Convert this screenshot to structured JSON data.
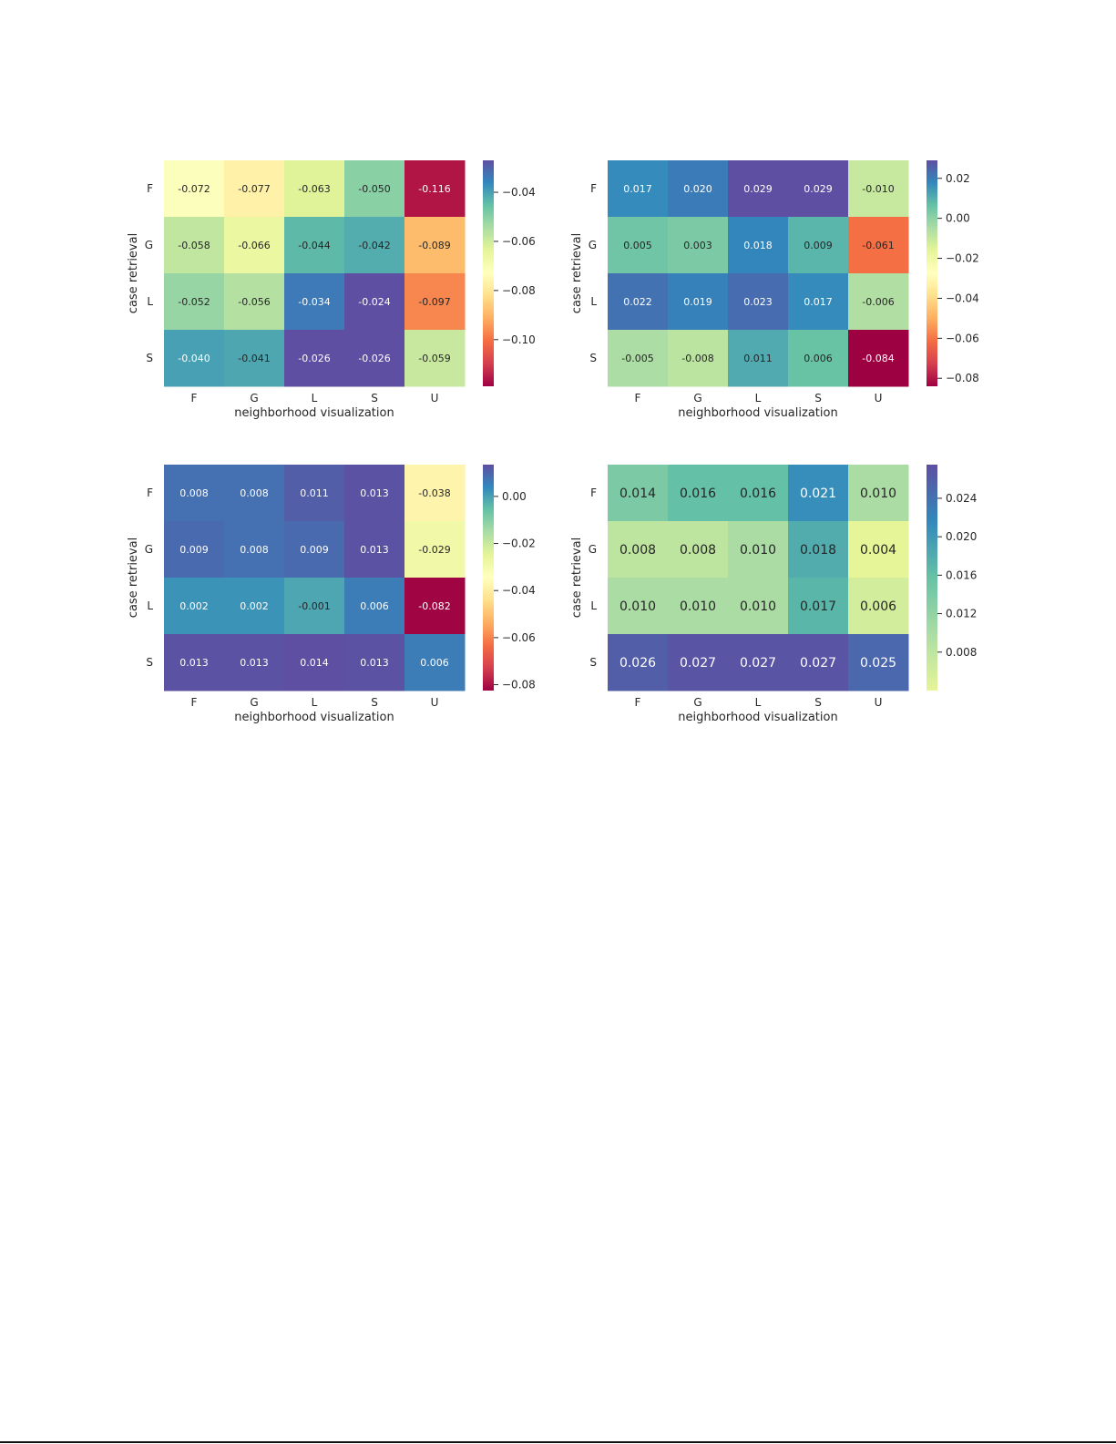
{
  "chart_data": [
    {
      "type": "heatmap",
      "colormap": "Spectral",
      "xlabel": "neighborhood visualization",
      "ylabel": "case retrieval",
      "x_categories": [
        "F",
        "G",
        "L",
        "S",
        "U"
      ],
      "y_categories": [
        "F",
        "G",
        "L",
        "S"
      ],
      "values": [
        [
          -0.072,
          -0.077,
          -0.063,
          -0.05,
          -0.116
        ],
        [
          -0.058,
          -0.066,
          -0.044,
          -0.042,
          -0.089
        ],
        [
          -0.052,
          -0.056,
          -0.034,
          -0.024,
          -0.097
        ],
        [
          -0.04,
          -0.041,
          -0.026,
          -0.026,
          -0.059
        ]
      ],
      "cell_labels": [
        [
          "-0.072",
          "-0.077",
          "-0.063",
          "-0.050",
          "-0.116"
        ],
        [
          "-0.058",
          "-0.066",
          "-0.044",
          "-0.042",
          "-0.089"
        ],
        [
          "-0.052",
          "-0.056",
          "-0.034",
          "-0.024",
          "-0.097"
        ],
        [
          "-0.040",
          "-0.041",
          "-0.026",
          "-0.026",
          "-0.059"
        ]
      ],
      "colorbar": {
        "vmin": -0.119,
        "vmax": -0.027,
        "ticks": [
          -0.04,
          -0.06,
          -0.08,
          -0.1
        ],
        "tick_labels": [
          "−0.04",
          "−0.06",
          "−0.08",
          "−0.10"
        ]
      }
    },
    {
      "type": "heatmap",
      "colormap": "Spectral",
      "xlabel": "neighborhood visualization",
      "ylabel": "case retrieval",
      "x_categories": [
        "F",
        "G",
        "L",
        "S",
        "U"
      ],
      "y_categories": [
        "F",
        "G",
        "L",
        "S"
      ],
      "values": [
        [
          0.017,
          0.02,
          0.029,
          0.029,
          -0.01
        ],
        [
          0.005,
          0.003,
          0.018,
          0.009,
          -0.061
        ],
        [
          0.022,
          0.019,
          0.023,
          0.017,
          -0.006
        ],
        [
          -0.005,
          -0.008,
          0.011,
          0.006,
          -0.084
        ]
      ],
      "cell_labels": [
        [
          "0.017",
          "0.020",
          "0.029",
          "0.029",
          "-0.010"
        ],
        [
          "0.005",
          "0.003",
          "0.018",
          "0.009",
          "-0.061"
        ],
        [
          "0.022",
          "0.019",
          "0.023",
          "0.017",
          "-0.006"
        ],
        [
          "-0.005",
          "-0.008",
          "0.011",
          "0.006",
          "-0.084"
        ]
      ],
      "colorbar": {
        "vmin": -0.084,
        "vmax": 0.029,
        "ticks": [
          0.02,
          0.0,
          -0.02,
          -0.04,
          -0.06,
          -0.08
        ],
        "tick_labels": [
          "0.02",
          "0.00",
          "−0.02",
          "−0.04",
          "−0.06",
          "−0.08"
        ]
      }
    },
    {
      "type": "heatmap",
      "colormap": "Spectral",
      "xlabel": "neighborhood visualization",
      "ylabel": "case retrieval",
      "x_categories": [
        "F",
        "G",
        "L",
        "S",
        "U"
      ],
      "y_categories": [
        "F",
        "G",
        "L",
        "S"
      ],
      "values": [
        [
          0.008,
          0.008,
          0.011,
          0.013,
          -0.038
        ],
        [
          0.009,
          0.008,
          0.009,
          0.013,
          -0.029
        ],
        [
          0.002,
          0.002,
          -0.001,
          0.006,
          -0.082
        ],
        [
          0.013,
          0.013,
          0.014,
          0.013,
          0.006
        ]
      ],
      "cell_labels": [
        [
          "0.008",
          "0.008",
          "0.011",
          "0.013",
          "-0.038"
        ],
        [
          "0.009",
          "0.008",
          "0.009",
          "0.013",
          "-0.029"
        ],
        [
          "0.002",
          "0.002",
          "-0.001",
          "0.006",
          "-0.082"
        ],
        [
          "0.013",
          "0.013",
          "0.014",
          "0.013",
          "0.006"
        ]
      ],
      "colorbar": {
        "vmin": -0.0825,
        "vmax": 0.0135,
        "ticks": [
          0.0,
          -0.02,
          -0.04,
          -0.06,
          -0.08
        ],
        "tick_labels": [
          "0.00",
          "−0.02",
          "−0.04",
          "−0.06",
          "−0.08"
        ]
      }
    },
    {
      "type": "heatmap",
      "colormap": "Spectral-positive",
      "xlabel": "neighborhood visualization",
      "ylabel": "case retrieval",
      "x_categories": [
        "F",
        "G",
        "L",
        "S",
        "U"
      ],
      "y_categories": [
        "F",
        "G",
        "L",
        "S"
      ],
      "values": [
        [
          0.014,
          0.016,
          0.016,
          0.021,
          0.01
        ],
        [
          0.008,
          0.008,
          0.01,
          0.018,
          0.004
        ],
        [
          0.01,
          0.01,
          0.01,
          0.017,
          0.006
        ],
        [
          0.026,
          0.027,
          0.027,
          0.027,
          0.025
        ]
      ],
      "cell_labels": [
        [
          "0.014",
          "0.016",
          "0.016",
          "0.021",
          "0.010"
        ],
        [
          "0.008",
          "0.008",
          "0.010",
          "0.018",
          "0.004"
        ],
        [
          "0.010",
          "0.010",
          "0.010",
          "0.017",
          "0.006"
        ],
        [
          "0.026",
          "0.027",
          "0.027",
          "0.027",
          "0.025"
        ]
      ],
      "colorbar": {
        "vmin": 0.004,
        "vmax": 0.0275,
        "ticks": [
          0.024,
          0.02,
          0.016,
          0.012,
          0.008
        ],
        "tick_labels": [
          "0.024",
          "0.020",
          "0.016",
          "0.012",
          "0.008"
        ]
      }
    }
  ]
}
